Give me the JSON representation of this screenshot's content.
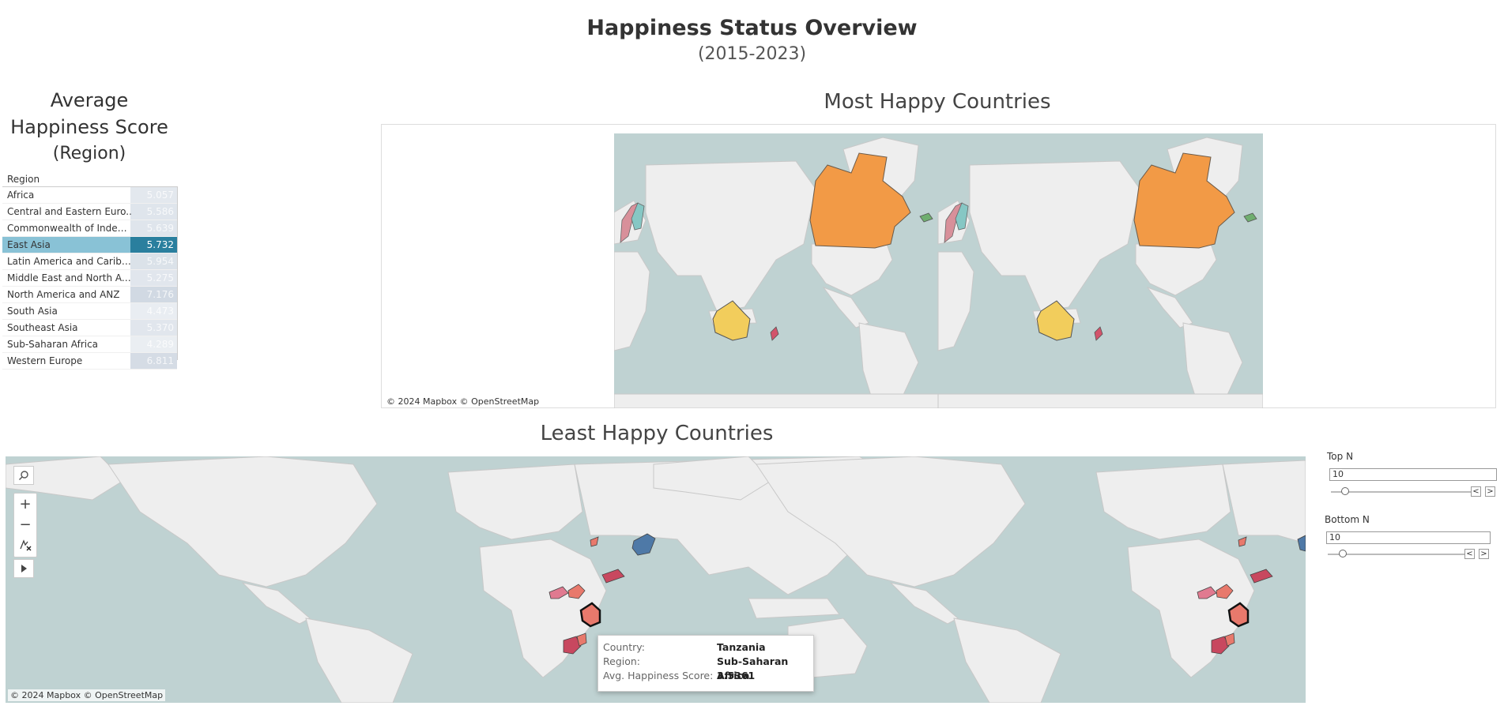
{
  "header": {
    "title": "Happiness Status Overview",
    "subtitle": "(2015-2023)"
  },
  "region_panel": {
    "title_line1": "Average",
    "title_line2": "Happiness Score",
    "title_line3": "(Region)",
    "column_header": "Region",
    "rows": [
      {
        "name": "Africa",
        "value": "5.057"
      },
      {
        "name": "Central and Eastern Euro..",
        "value": "5.586"
      },
      {
        "name": "Commonwealth of Indepe..",
        "value": "5.639"
      },
      {
        "name": "East Asia",
        "value": "5.732"
      },
      {
        "name": "Latin America and Caribbe..",
        "value": "5.954"
      },
      {
        "name": "Middle East and North Afr..",
        "value": "5.275"
      },
      {
        "name": "North America and ANZ",
        "value": "7.176"
      },
      {
        "name": "South Asia",
        "value": "4.473"
      },
      {
        "name": "Southeast Asia",
        "value": "5.370"
      },
      {
        "name": "Sub-Saharan Africa",
        "value": "4.289"
      },
      {
        "name": "Western Europe",
        "value": "6.811"
      }
    ],
    "selected_row": "East Asia"
  },
  "most_happy": {
    "title": "Most Happy Countries",
    "credit": "© 2024 Mapbox © OpenStreetMap"
  },
  "least_happy": {
    "title": "Least Happy Countries",
    "credit": "© 2024 Mapbox © OpenStreetMap"
  },
  "map_controls": {
    "search_icon": "magnifier-icon",
    "zoom_in_icon": "plus-icon",
    "zoom_out_icon": "minus-icon",
    "reset_icon": "pin-reset-icon",
    "pan_icon": "play-arrow-icon"
  },
  "tooltip": {
    "country_label": "Country:",
    "country_value": "Tanzania",
    "region_label": "Region:",
    "region_value": "Sub-Saharan Africa",
    "score_label": "Avg. Happiness Score:",
    "score_value": "3.5361"
  },
  "parameters": {
    "top_n": {
      "label": "Top N",
      "value": "10"
    },
    "bottom_n": {
      "label": "Bottom N",
      "value": "10"
    }
  },
  "colors": {
    "ocean": "#bfd2d2",
    "land": "#eeeeee",
    "border": "#c8c8c8",
    "canada": "#f29a46",
    "australia": "#f2cd5c",
    "nordic_teal": "#86c7c4",
    "nordic_pink": "#d8909a",
    "iceland": "#6fae6f",
    "nz": "#d2546b",
    "afghanistan": "#4e79a7",
    "salmon": "#e8796c",
    "crimson": "#c8485f",
    "pink": "#e07a90",
    "selected_blue": "#2a7f9e"
  }
}
